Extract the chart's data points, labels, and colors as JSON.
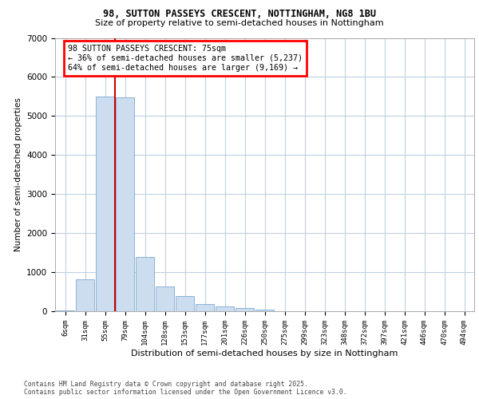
{
  "title_line1": "98, SUTTON PASSEYS CRESCENT, NOTTINGHAM, NG8 1BU",
  "title_line2": "Size of property relative to semi-detached houses in Nottingham",
  "xlabel": "Distribution of semi-detached houses by size in Nottingham",
  "ylabel": "Number of semi-detached properties",
  "footer_line1": "Contains HM Land Registry data © Crown copyright and database right 2025.",
  "footer_line2": "Contains public sector information licensed under the Open Government Licence v3.0.",
  "annotation_line1": "98 SUTTON PASSEYS CRESCENT: 75sqm",
  "annotation_line2": "← 36% of semi-detached houses are smaller (5,237)",
  "annotation_line3": "64% of semi-detached houses are larger (9,169) →",
  "bar_color": "#ccddf0",
  "bar_edge_color": "#7baacf",
  "vline_color": "#cc0000",
  "background_color": "#ffffff",
  "grid_color": "#c0d0e0",
  "categories": [
    "6sqm",
    "31sqm",
    "55sqm",
    "79sqm",
    "104sqm",
    "128sqm",
    "153sqm",
    "177sqm",
    "201sqm",
    "226sqm",
    "250sqm",
    "275sqm",
    "299sqm",
    "323sqm",
    "348sqm",
    "372sqm",
    "397sqm",
    "421sqm",
    "446sqm",
    "470sqm",
    "494sqm"
  ],
  "values": [
    28,
    820,
    5500,
    5480,
    1380,
    640,
    390,
    185,
    125,
    75,
    45,
    10,
    4,
    2,
    1,
    0,
    0,
    0,
    0,
    0,
    0
  ],
  "ylim": [
    0,
    7000
  ],
  "yticks": [
    0,
    1000,
    2000,
    3000,
    4000,
    5000,
    6000,
    7000
  ],
  "vline_x": 2.5,
  "figsize": [
    6.0,
    5.0
  ],
  "dpi": 100
}
